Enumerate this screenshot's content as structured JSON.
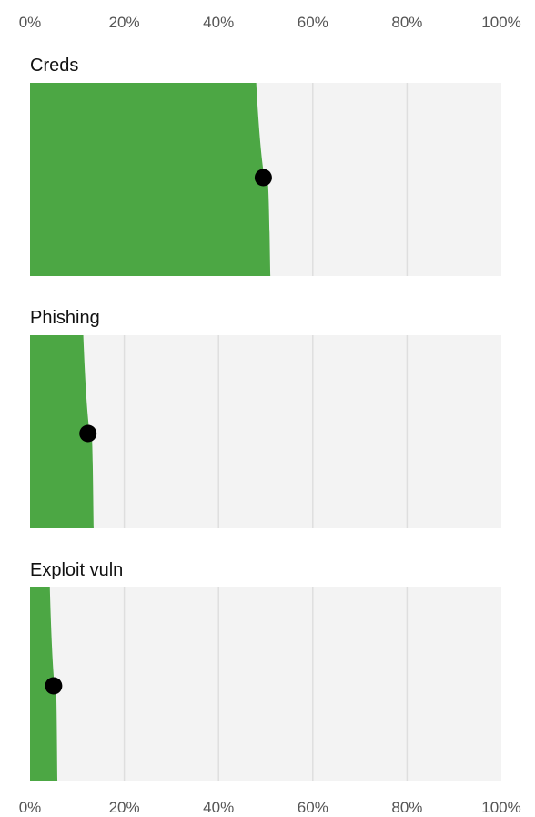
{
  "chart_data": {
    "type": "area",
    "x_ticks": [
      "0%",
      "20%",
      "40%",
      "60%",
      "80%",
      "100%"
    ],
    "xlim": [
      0,
      100
    ],
    "x_axis_positions": [
      "top",
      "bottom"
    ],
    "grid": true,
    "colors": {
      "fill": "#4ca744",
      "panel_bg": "#f3f3f3",
      "grid": "#dedede",
      "point": "#000000"
    },
    "panels": [
      {
        "title": "Creds",
        "point": 49.5,
        "band": [
          48,
          51
        ]
      },
      {
        "title": "Phishing",
        "point": 12.3,
        "band": [
          11.3,
          13.5
        ]
      },
      {
        "title": "Exploit vuln",
        "point": 5,
        "band": [
          4.2,
          5.8
        ]
      }
    ]
  }
}
